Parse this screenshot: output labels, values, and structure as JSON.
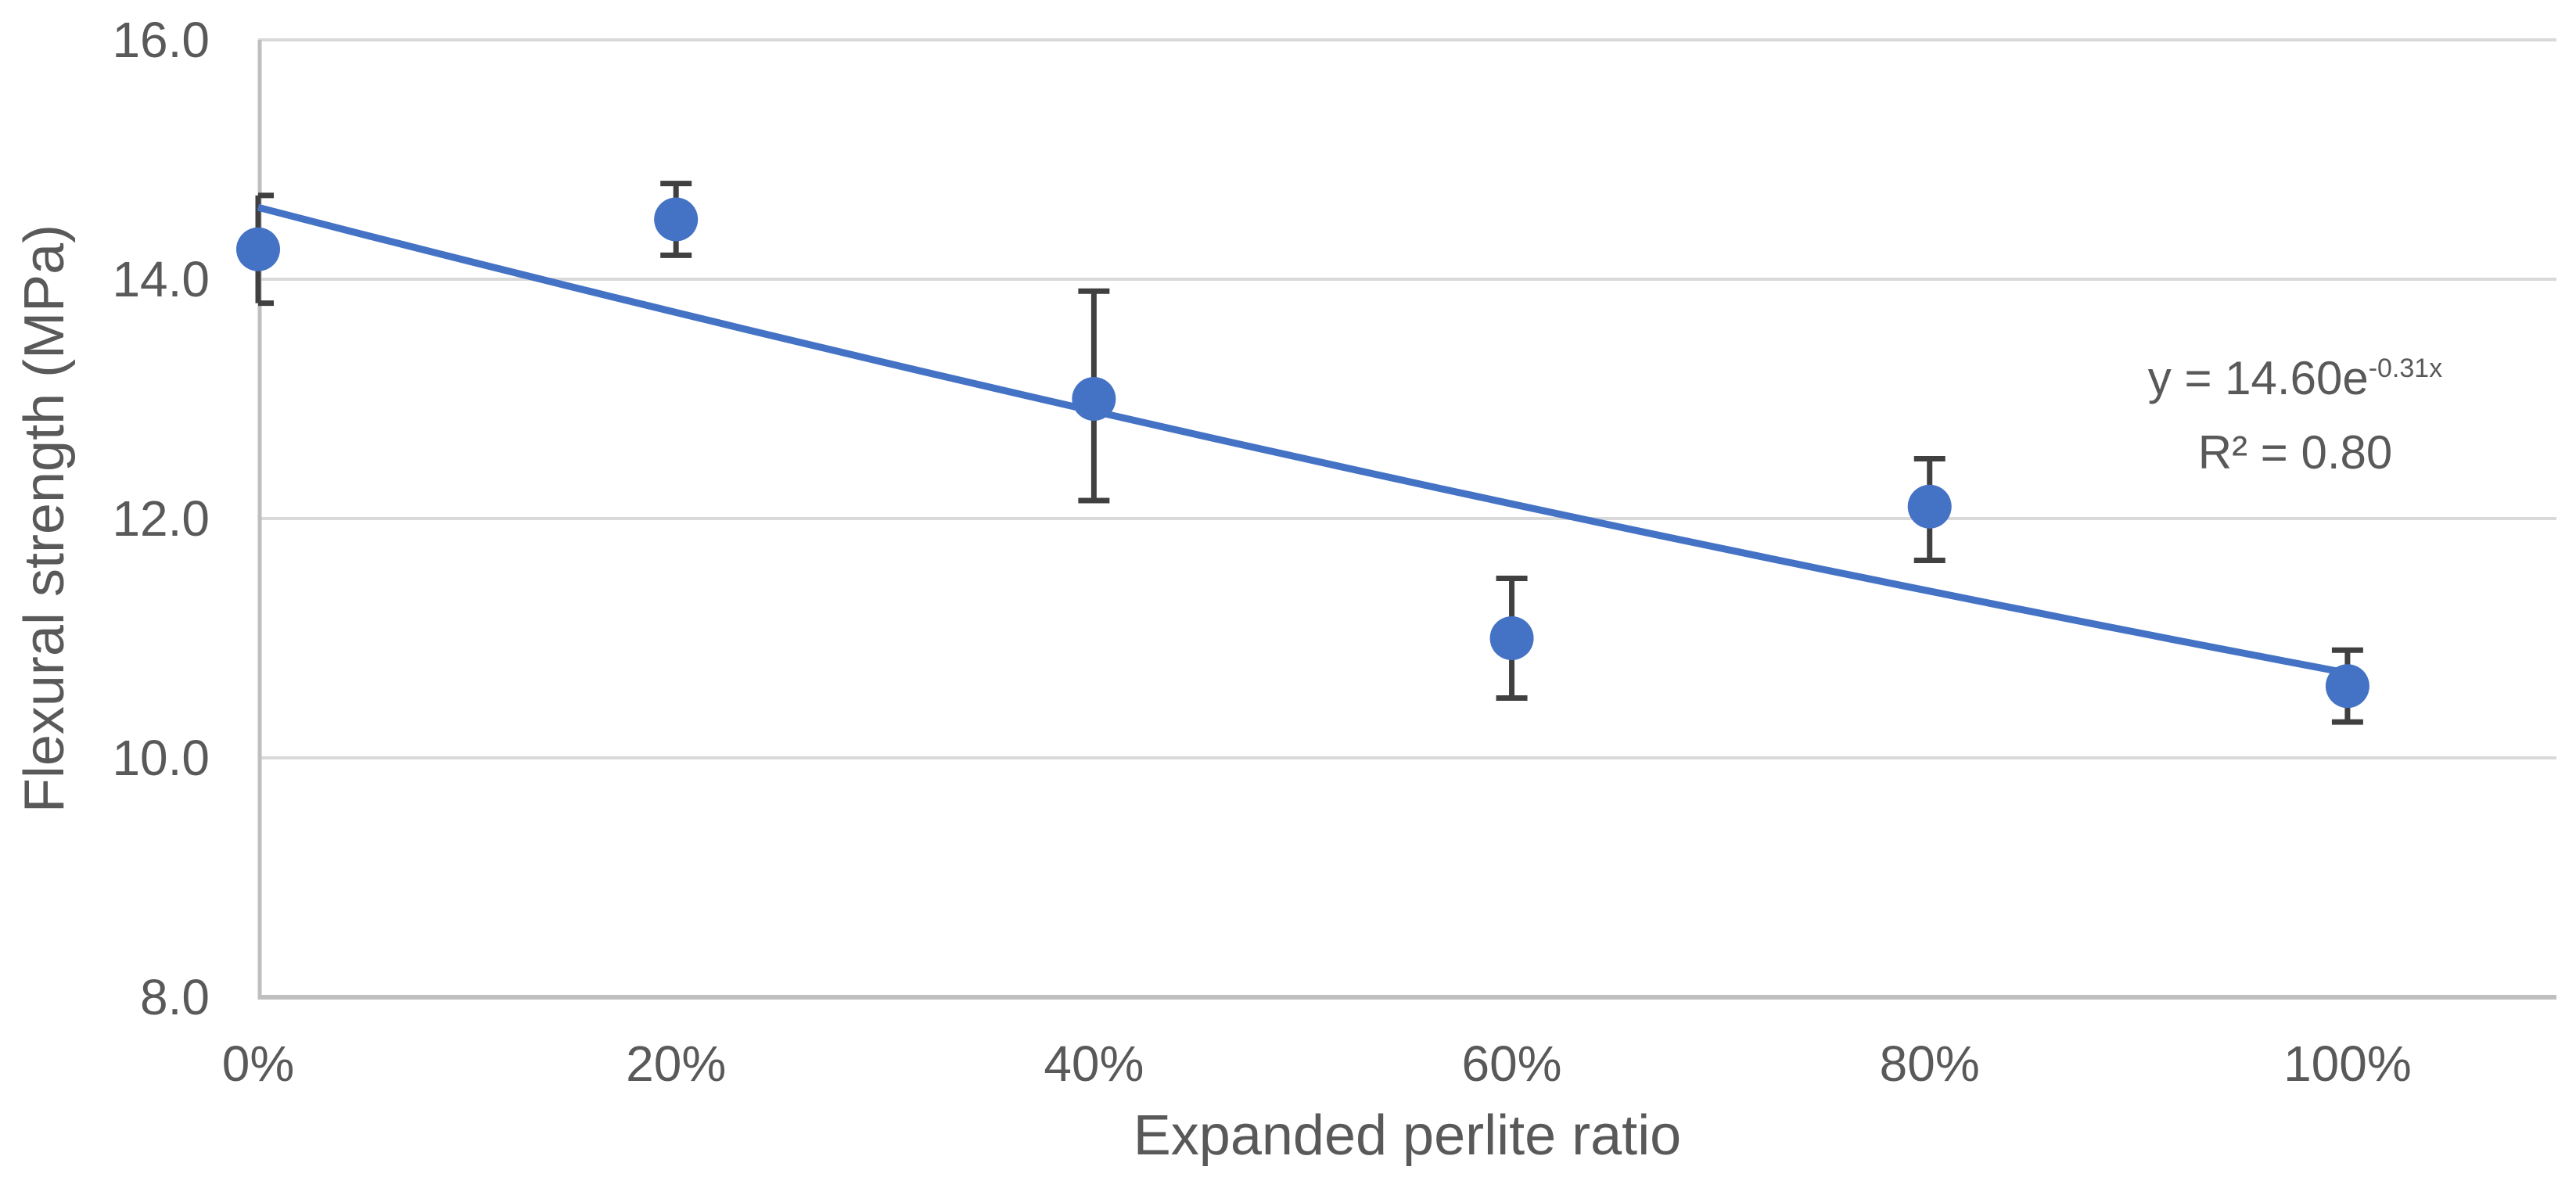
{
  "chart_data": {
    "type": "scatter",
    "xlabel": "Expanded perlite ratio",
    "ylabel": "Flexural strength (MPa)",
    "grid": true,
    "legend": "none",
    "x_axis": {
      "min_percent": 0,
      "max_percent": 110,
      "tick_values_percent": [
        0,
        20,
        40,
        60,
        80,
        100
      ],
      "tick_labels": [
        "0%",
        "20%",
        "40%",
        "60%",
        "80%",
        "100%"
      ]
    },
    "y_axis": {
      "min": 8.0,
      "max": 16.0,
      "step": 2.0,
      "tick_values": [
        16,
        14,
        12,
        10,
        8
      ],
      "tick_labels": [
        "16.0",
        "14.0",
        "12.0",
        "10.0",
        "8.0"
      ]
    },
    "series": [
      {
        "name": "Flexural strength",
        "marker": "circle",
        "points": [
          {
            "x_percent": 0,
            "y": 14.25,
            "err_low": 13.8,
            "err_high": 14.7
          },
          {
            "x_percent": 20,
            "y": 14.5,
            "err_low": 14.2,
            "err_high": 14.8
          },
          {
            "x_percent": 40,
            "y": 13.0,
            "err_low": 12.15,
            "err_high": 13.9
          },
          {
            "x_percent": 60,
            "y": 11.0,
            "err_low": 10.5,
            "err_high": 11.5
          },
          {
            "x_percent": 80,
            "y": 12.1,
            "err_low": 11.65,
            "err_high": 12.5
          },
          {
            "x_percent": 100,
            "y": 10.6,
            "err_low": 10.3,
            "err_high": 10.9
          }
        ]
      }
    ],
    "trendline": {
      "type": "exponential",
      "a": 14.6,
      "b": -0.31,
      "x_range_percent": [
        0,
        100
      ],
      "equation_base": "y = 14.60e",
      "equation_exponent": "-0.31x",
      "r_squared_label": "R² = 0.80"
    },
    "colors": {
      "marker": "#4472C4",
      "trendline": "#4472C4",
      "error_bar": "#404040",
      "gridline": "#D9D9D9",
      "axis_line": "#BFBFBF",
      "text": "#595959",
      "background": "#FFFFFF"
    }
  }
}
